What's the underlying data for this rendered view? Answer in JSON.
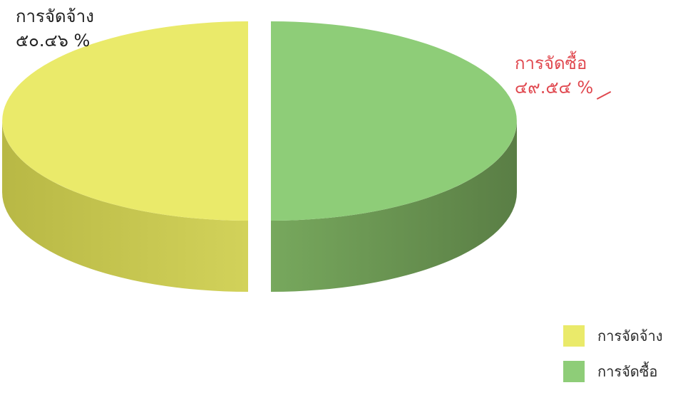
{
  "chart_data": {
    "type": "pie",
    "style": "3d-exploded",
    "slices": [
      {
        "name": "การจัดจ้าง",
        "value": 50.46,
        "label_lines": [
          "การจัดจ้าง",
          "๕๐.๔๖ %"
        ],
        "color": "#eaea6a",
        "side_color": "#c9c94c",
        "label_color": "#1f1f1f"
      },
      {
        "name": "การจัดซื้อ",
        "value": 49.54,
        "label_lines": [
          "การจัดซื้อ",
          "๔๙.๕๔ %"
        ],
        "color": "#8ecd78",
        "side_color": "#6f9a56",
        "label_color": "#e0484f"
      }
    ],
    "legend": {
      "position": "bottom-right",
      "entries": [
        {
          "label": "การจัดจ้าง",
          "color": "#eaea6a"
        },
        {
          "label": "การจัดซื้อ",
          "color": "#8ecd78"
        }
      ]
    }
  }
}
